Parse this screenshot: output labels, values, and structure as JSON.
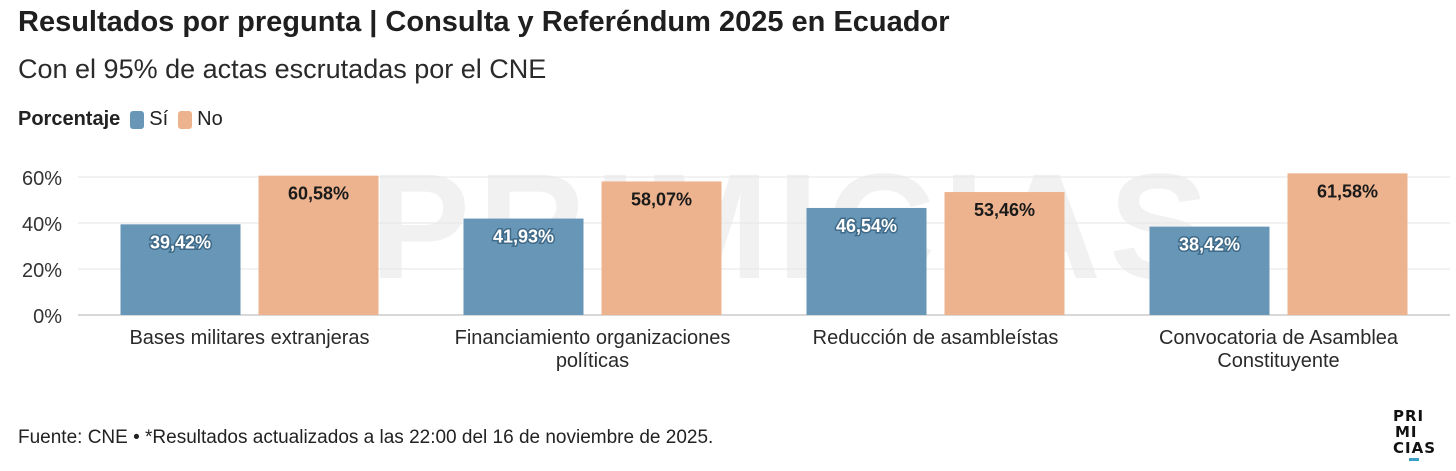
{
  "title": "Resultados por pregunta | Consulta y Referéndum 2025 en Ecuador",
  "subtitle": "Con el 95% de actas escrutadas por el CNE",
  "legend": {
    "title": "Porcentaje",
    "items": [
      {
        "label": "Sí",
        "color": "#6796b7"
      },
      {
        "label": "No",
        "color": "#edb38e"
      }
    ]
  },
  "watermark": "PRIMICIAS",
  "footer": "Fuente: CNE • *Resultados actualizados a las 22:00 del 16 de noviembre de 2025.",
  "brand": {
    "line1": "PRI",
    "line2": "MI",
    "line3": "CIAS"
  },
  "chart_data": {
    "type": "bar",
    "categories": [
      [
        "Bases militares extranjeras"
      ],
      [
        "Financiamiento organizaciones",
        "políticas"
      ],
      [
        "Reducción de asambleístas"
      ],
      [
        "Convocatoria de Asamblea",
        "Constituyente"
      ]
    ],
    "series": [
      {
        "name": "Sí",
        "color": "#6796b7",
        "values": [
          39.42,
          41.93,
          46.54,
          38.42
        ],
        "labels": [
          "39,42%",
          "41,93%",
          "46,54%",
          "38,42%"
        ]
      },
      {
        "name": "No",
        "color": "#edb38e",
        "values": [
          60.58,
          58.07,
          53.46,
          61.58
        ],
        "labels": [
          "60,58%",
          "58,07%",
          "53,46%",
          "61,58%"
        ]
      }
    ],
    "yticks": [
      0,
      20,
      40,
      60
    ],
    "ytick_labels": [
      "0%",
      "20%",
      "40%",
      "60%"
    ],
    "ylim": [
      0,
      64
    ],
    "grid": true,
    "legend_position": "top-left"
  }
}
